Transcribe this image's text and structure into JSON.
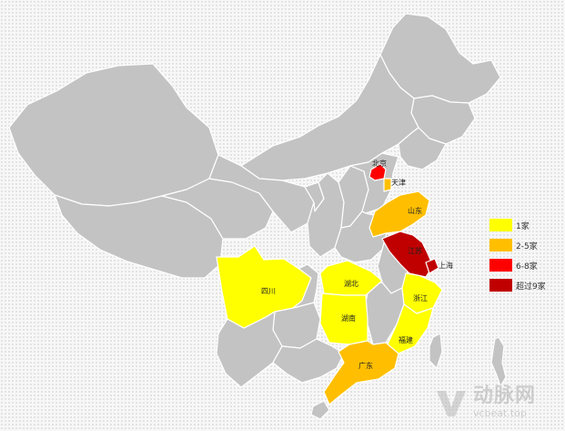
{
  "colors": {
    "base": "#c3c3c3",
    "yellow": "#ffff00",
    "orange": "#ffbf00",
    "red": "#ff0000",
    "darkred": "#c00000"
  },
  "legend": [
    {
      "label": "1家",
      "color": "#ffff00"
    },
    {
      "label": "2-5家",
      "color": "#ffbf00"
    },
    {
      "label": "6-8家",
      "color": "#ff0000"
    },
    {
      "label": "超过9家",
      "color": "#c00000"
    }
  ],
  "provinces": {
    "beijing": {
      "label": "北京",
      "category": "6-8家"
    },
    "tianjin": {
      "label": "天津",
      "category": "2-5家"
    },
    "shandong": {
      "label": "山东",
      "category": "2-5家"
    },
    "jiangsu": {
      "label": "江苏",
      "category": "超过9家"
    },
    "shanghai": {
      "label": "上海",
      "category": "超过9家"
    },
    "sichuan": {
      "label": "四川",
      "category": "1家"
    },
    "hubei": {
      "label": "湖北",
      "category": "1家"
    },
    "hunan": {
      "label": "湖南",
      "category": "1家"
    },
    "zhejiang": {
      "label": "浙江",
      "category": "1家"
    },
    "fujian": {
      "label": "福建",
      "category": "1家"
    },
    "guangdong": {
      "label": "广东",
      "category": "2-5家"
    }
  },
  "watermark": {
    "cn": "动脉网",
    "en": "vcbeat.top"
  }
}
